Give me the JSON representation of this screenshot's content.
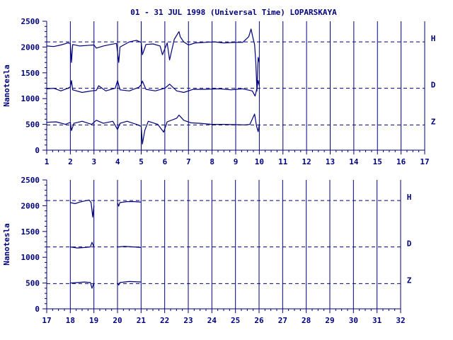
{
  "title": "01 - 31 JUL 1998 (Universal Time) LOPARSKAYA",
  "colors": {
    "axis": "#00007f",
    "trace": "#00007f",
    "background": "#ffffff"
  },
  "chart_data": [
    {
      "type": "line",
      "ylabel": "Nanotesla",
      "ylim": [
        0,
        2500
      ],
      "yticks": [
        0,
        500,
        1000,
        1500,
        2000,
        2500
      ],
      "xlim": [
        1,
        17
      ],
      "xticks": [
        1,
        2,
        3,
        4,
        5,
        6,
        7,
        8,
        9,
        10,
        11,
        12,
        13,
        14,
        15,
        16,
        17
      ],
      "baselines": [
        {
          "name": "H",
          "value": 2100
        },
        {
          "name": "D",
          "value": 1200
        },
        {
          "name": "Z",
          "value": 490
        }
      ],
      "series": [
        {
          "name": "H",
          "points": [
            [
              1.0,
              2020
            ],
            [
              1.3,
              2010
            ],
            [
              1.6,
              2040
            ],
            [
              1.9,
              2080
            ],
            [
              2.0,
              2070
            ],
            [
              2.05,
              1700
            ],
            [
              2.1,
              2050
            ],
            [
              2.4,
              2020
            ],
            [
              2.7,
              2030
            ],
            [
              3.0,
              2040
            ],
            [
              3.1,
              1980
            ],
            [
              3.4,
              2020
            ],
            [
              3.7,
              2050
            ],
            [
              3.95,
              2070
            ],
            [
              4.05,
              1700
            ],
            [
              4.1,
              2000
            ],
            [
              4.5,
              2100
            ],
            [
              4.8,
              2130
            ],
            [
              5.0,
              2090
            ],
            [
              5.05,
              1850
            ],
            [
              5.2,
              2050
            ],
            [
              5.5,
              2060
            ],
            [
              5.8,
              2020
            ],
            [
              5.9,
              1850
            ],
            [
              6.1,
              2080
            ],
            [
              6.2,
              1750
            ],
            [
              6.4,
              2150
            ],
            [
              6.6,
              2300
            ],
            [
              6.65,
              2200
            ],
            [
              6.8,
              2100
            ],
            [
              7.0,
              2040
            ],
            [
              7.3,
              2080
            ],
            [
              7.7,
              2090
            ],
            [
              8.1,
              2100
            ],
            [
              8.5,
              2080
            ],
            [
              9.0,
              2090
            ],
            [
              9.3,
              2090
            ],
            [
              9.55,
              2200
            ],
            [
              9.65,
              2350
            ],
            [
              9.72,
              2200
            ],
            [
              9.8,
              2050
            ],
            [
              9.85,
              1700
            ],
            [
              9.9,
              1150
            ],
            [
              9.95,
              1800
            ],
            [
              10.0,
              1700
            ]
          ]
        },
        {
          "name": "D",
          "points": [
            [
              1.0,
              1190
            ],
            [
              1.3,
              1200
            ],
            [
              1.6,
              1150
            ],
            [
              1.9,
              1200
            ],
            [
              2.0,
              1230
            ],
            [
              2.05,
              1350
            ],
            [
              2.1,
              1170
            ],
            [
              2.5,
              1120
            ],
            [
              2.9,
              1150
            ],
            [
              3.1,
              1160
            ],
            [
              3.2,
              1250
            ],
            [
              3.5,
              1150
            ],
            [
              3.9,
              1200
            ],
            [
              4.0,
              1350
            ],
            [
              4.1,
              1170
            ],
            [
              4.5,
              1150
            ],
            [
              4.9,
              1220
            ],
            [
              5.0,
              1270
            ],
            [
              5.05,
              1340
            ],
            [
              5.2,
              1180
            ],
            [
              5.6,
              1150
            ],
            [
              6.0,
              1200
            ],
            [
              6.2,
              1280
            ],
            [
              6.5,
              1150
            ],
            [
              6.8,
              1120
            ],
            [
              7.2,
              1180
            ],
            [
              7.7,
              1180
            ],
            [
              8.3,
              1190
            ],
            [
              8.8,
              1170
            ],
            [
              9.3,
              1190
            ],
            [
              9.7,
              1150
            ],
            [
              9.82,
              1050
            ],
            [
              9.9,
              1200
            ],
            [
              9.95,
              1350
            ],
            [
              10.0,
              1250
            ]
          ]
        },
        {
          "name": "Z",
          "points": [
            [
              1.0,
              540
            ],
            [
              1.4,
              550
            ],
            [
              1.8,
              500
            ],
            [
              2.0,
              540
            ],
            [
              2.05,
              380
            ],
            [
              2.15,
              520
            ],
            [
              2.5,
              560
            ],
            [
              2.9,
              500
            ],
            [
              3.1,
              580
            ],
            [
              3.4,
              520
            ],
            [
              3.8,
              560
            ],
            [
              4.0,
              400
            ],
            [
              4.1,
              520
            ],
            [
              4.4,
              560
            ],
            [
              4.8,
              500
            ],
            [
              5.0,
              460
            ],
            [
              5.05,
              120
            ],
            [
              5.15,
              380
            ],
            [
              5.3,
              560
            ],
            [
              5.7,
              500
            ],
            [
              5.95,
              350
            ],
            [
              6.1,
              550
            ],
            [
              6.5,
              620
            ],
            [
              6.6,
              680
            ],
            [
              6.8,
              580
            ],
            [
              7.1,
              530
            ],
            [
              7.5,
              520
            ],
            [
              8.0,
              500
            ],
            [
              8.5,
              500
            ],
            [
              9.0,
              495
            ],
            [
              9.4,
              490
            ],
            [
              9.6,
              500
            ],
            [
              9.72,
              620
            ],
            [
              9.8,
              700
            ],
            [
              9.88,
              470
            ],
            [
              9.95,
              360
            ],
            [
              10.0,
              500
            ]
          ]
        }
      ]
    },
    {
      "type": "line",
      "ylabel": "Nanotesla",
      "ylim": [
        0,
        2500
      ],
      "yticks": [
        0,
        500,
        1000,
        1500,
        2000,
        2500
      ],
      "xlim": [
        17,
        32
      ],
      "xticks": [
        17,
        18,
        19,
        20,
        21,
        22,
        23,
        24,
        25,
        26,
        27,
        28,
        29,
        30,
        31,
        32
      ],
      "baselines": [
        {
          "name": "H",
          "value": 2100
        },
        {
          "name": "D",
          "value": 1200
        },
        {
          "name": "Z",
          "value": 490
        }
      ],
      "series": [
        {
          "name": "H",
          "segments": [
            [
              [
                18.0,
                2060
              ],
              [
                18.2,
                2040
              ],
              [
                18.4,
                2070
              ],
              [
                18.6,
                2090
              ],
              [
                18.8,
                2110
              ],
              [
                18.88,
                2060
              ],
              [
                18.95,
                1780
              ],
              [
                19.0,
                2000
              ]
            ],
            [
              [
                20.0,
                2060
              ],
              [
                20.05,
                1990
              ],
              [
                20.1,
                2060
              ],
              [
                20.4,
                2080
              ],
              [
                20.7,
                2080
              ],
              [
                21.0,
                2070
              ]
            ]
          ]
        },
        {
          "name": "D",
          "segments": [
            [
              [
                18.0,
                1200
              ],
              [
                18.3,
                1180
              ],
              [
                18.6,
                1190
              ],
              [
                18.85,
                1200
              ],
              [
                18.92,
                1290
              ],
              [
                19.0,
                1200
              ]
            ],
            [
              [
                20.0,
                1200
              ],
              [
                20.3,
                1210
              ],
              [
                20.7,
                1200
              ],
              [
                21.0,
                1190
              ]
            ]
          ]
        },
        {
          "name": "Z",
          "segments": [
            [
              [
                18.0,
                500
              ],
              [
                18.3,
                510
              ],
              [
                18.6,
                520
              ],
              [
                18.85,
                510
              ],
              [
                18.92,
                400
              ],
              [
                19.0,
                500
              ]
            ],
            [
              [
                20.0,
                500
              ],
              [
                20.05,
                460
              ],
              [
                20.1,
                510
              ],
              [
                20.5,
                530
              ],
              [
                21.0,
                520
              ]
            ]
          ]
        }
      ]
    }
  ]
}
